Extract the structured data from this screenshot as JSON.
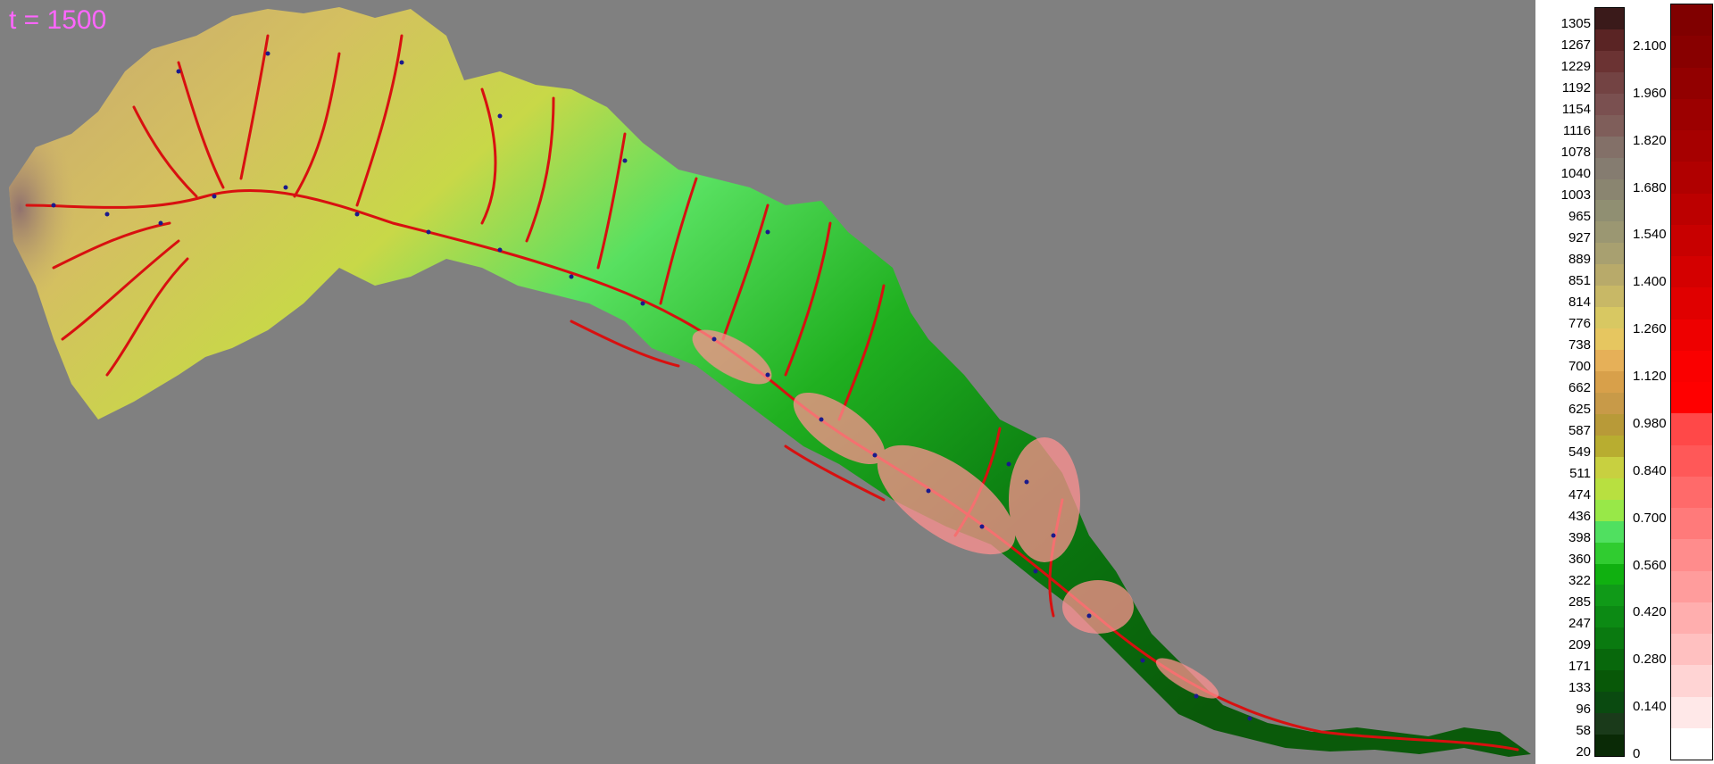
{
  "title": "t = 1500",
  "colors": {
    "background": "#808080",
    "time_label": "#ff66ff",
    "channel_markers": "#1a1a8c"
  },
  "elevation_legend": {
    "labels": [
      "1305",
      "1267",
      "1229",
      "1192",
      "1154",
      "1116",
      "1078",
      "1040",
      "1003",
      "965",
      "927",
      "889",
      "851",
      "814",
      "776",
      "738",
      "700",
      "662",
      "625",
      "587",
      "549",
      "511",
      "474",
      "436",
      "398",
      "360",
      "322",
      "285",
      "247",
      "209",
      "171",
      "133",
      "96",
      "58",
      "20"
    ],
    "colors": [
      "#3a1a1a",
      "#5a2424",
      "#6b3333",
      "#734343",
      "#7a5050",
      "#7f5e5a",
      "#837068",
      "#857c70",
      "#8a8570",
      "#908f72",
      "#9b9772",
      "#a8a070",
      "#b8aa6a",
      "#c8b866",
      "#d8c862",
      "#e6c660",
      "#e6b058",
      "#d8a04a",
      "#c89a48",
      "#b89a38",
      "#b8ad30",
      "#c8d040",
      "#b8e040",
      "#98e848",
      "#50e060",
      "#30cc30",
      "#10b010",
      "#109a18",
      "#0c8a14",
      "#0a7a10",
      "#08680c",
      "#085808",
      "#0a4a10",
      "#1a3a1a",
      "#0a2a06"
    ]
  },
  "depth_legend": {
    "labels": [
      "2.100",
      "1.960",
      "1.820",
      "1.680",
      "1.540",
      "1.400",
      "1.260",
      "1.120",
      "0.980",
      "0.840",
      "0.700",
      "0.560",
      "0.420",
      "0.280",
      "0.140",
      "0"
    ],
    "colors": [
      "#800000",
      "#880000",
      "#920000",
      "#9c0000",
      "#a60000",
      "#b00000",
      "#bc0000",
      "#c80000",
      "#d40000",
      "#e00000",
      "#ee0000",
      "#fa0000",
      "#ff0000",
      "#ff4848",
      "#ff5858",
      "#ff6a6a",
      "#ff7a7a",
      "#ff8c8c",
      "#ff9c9c",
      "#ffaeae",
      "#ffc0c0",
      "#ffd4d4",
      "#ffe8e8",
      "#ffffff"
    ]
  }
}
